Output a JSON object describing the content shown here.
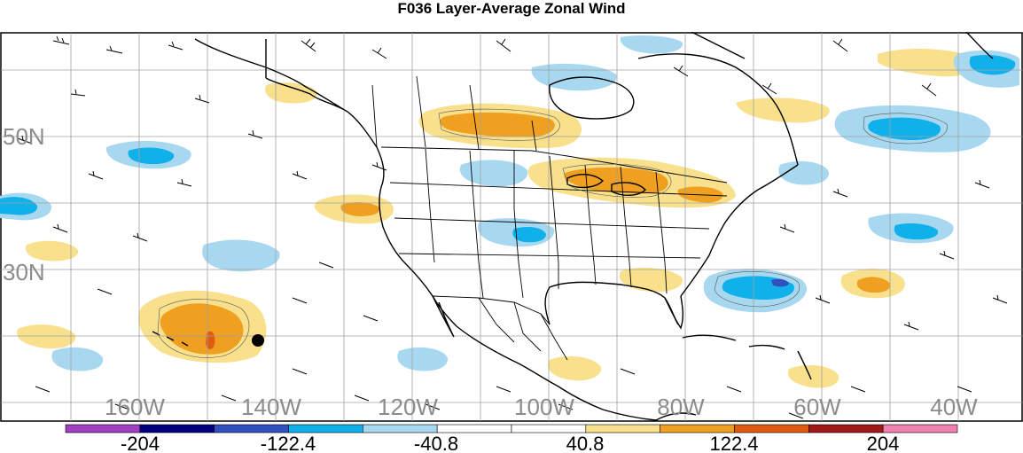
{
  "title": "F036 Layer-Average Zonal Wind",
  "lon_labels": [
    "160W",
    "140W",
    "120W",
    "100W",
    "80W",
    "60W",
    "40W"
  ],
  "lat_labels": [
    "50N",
    "30N"
  ],
  "colorbar": {
    "labels": [
      "-204",
      "-122.4",
      "-40.8",
      "40.8",
      "122.4",
      "204"
    ],
    "colors": [
      "#a040c0",
      "#000080",
      "#3050c0",
      "#10b0ea",
      "#a8d8f0",
      "#ffffff",
      "#ffffff",
      "#f8e08c",
      "#f0a020",
      "#e05a10",
      "#a01818",
      "#f080b0"
    ]
  },
  "shading": {
    "weak_positive": "#f8e08c",
    "strong_positive": "#f0a020",
    "extreme_positive": "#e05a10",
    "weak_negative": "#a8d8f0",
    "strong_negative": "#10b0ea",
    "extreme_negative": "#3050c0"
  },
  "marker": "station-dot"
}
